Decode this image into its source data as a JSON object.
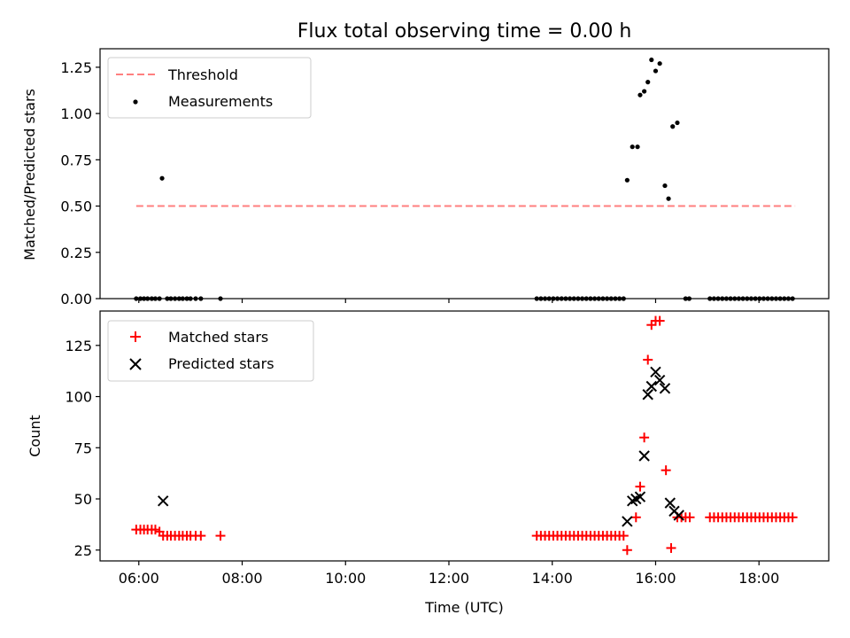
{
  "chart_data": [
    {
      "type": "scatter",
      "title": "Flux total observing time = 0.00 h",
      "xlabel": "",
      "ylabel": "Matched/Predicted stars",
      "xlim": [
        5.25,
        19.35
      ],
      "ylim": [
        0,
        1.35
      ],
      "yticks": [
        0,
        0.25,
        0.5,
        0.75,
        1.0,
        1.25
      ],
      "ytick_labels": [
        "0.00",
        "0.25",
        "0.50",
        "0.75",
        "1.00",
        "1.25"
      ],
      "grid": false,
      "legend_position": "top-left",
      "threshold": {
        "name": "Threshold",
        "value": 0.5,
        "x_range": [
          5.95,
          18.7
        ],
        "color": "#ff7f7f",
        "style": "dashed"
      },
      "series": [
        {
          "name": "Measurements",
          "marker": "dot",
          "color": "#000000",
          "points": [
            [
              5.95,
              0
            ],
            [
              6.03,
              0
            ],
            [
              6.1,
              0
            ],
            [
              6.17,
              0
            ],
            [
              6.25,
              0
            ],
            [
              6.32,
              0
            ],
            [
              6.4,
              0
            ],
            [
              6.45,
              0.65
            ],
            [
              6.55,
              0
            ],
            [
              6.62,
              0
            ],
            [
              6.7,
              0
            ],
            [
              6.78,
              0
            ],
            [
              6.85,
              0
            ],
            [
              6.93,
              0
            ],
            [
              7.0,
              0
            ],
            [
              7.1,
              0
            ],
            [
              7.2,
              0
            ],
            [
              7.58,
              0
            ],
            [
              13.7,
              0
            ],
            [
              13.78,
              0
            ],
            [
              13.86,
              0
            ],
            [
              13.94,
              0
            ],
            [
              14.02,
              0
            ],
            [
              14.1,
              0
            ],
            [
              14.18,
              0
            ],
            [
              14.26,
              0
            ],
            [
              14.34,
              0
            ],
            [
              14.42,
              0
            ],
            [
              14.5,
              0
            ],
            [
              14.58,
              0
            ],
            [
              14.66,
              0
            ],
            [
              14.74,
              0
            ],
            [
              14.82,
              0
            ],
            [
              14.9,
              0
            ],
            [
              14.98,
              0
            ],
            [
              15.06,
              0
            ],
            [
              15.14,
              0
            ],
            [
              15.22,
              0
            ],
            [
              15.3,
              0
            ],
            [
              15.38,
              0
            ],
            [
              15.45,
              0.64
            ],
            [
              15.55,
              0.82
            ],
            [
              15.65,
              0.82
            ],
            [
              15.7,
              1.1
            ],
            [
              15.78,
              1.12
            ],
            [
              15.85,
              1.17
            ],
            [
              15.92,
              1.29
            ],
            [
              16.0,
              1.23
            ],
            [
              16.08,
              1.27
            ],
            [
              16.18,
              0.61
            ],
            [
              16.25,
              0.54
            ],
            [
              16.33,
              0.93
            ],
            [
              16.42,
              0.95
            ],
            [
              16.58,
              0
            ],
            [
              16.65,
              0
            ],
            [
              17.05,
              0
            ],
            [
              17.13,
              0
            ],
            [
              17.21,
              0
            ],
            [
              17.29,
              0
            ],
            [
              17.37,
              0
            ],
            [
              17.45,
              0
            ],
            [
              17.53,
              0
            ],
            [
              17.61,
              0
            ],
            [
              17.69,
              0
            ],
            [
              17.77,
              0
            ],
            [
              17.85,
              0
            ],
            [
              17.93,
              0
            ],
            [
              18.01,
              0
            ],
            [
              18.09,
              0
            ],
            [
              18.17,
              0
            ],
            [
              18.25,
              0
            ],
            [
              18.33,
              0
            ],
            [
              18.41,
              0
            ],
            [
              18.49,
              0
            ],
            [
              18.57,
              0
            ],
            [
              18.65,
              0
            ]
          ]
        }
      ]
    },
    {
      "type": "scatter",
      "title": "",
      "xlabel": "Time (UTC)",
      "ylabel": "Count",
      "xlim": [
        5.25,
        19.35
      ],
      "ylim": [
        19.7,
        141.8
      ],
      "xticks": [
        6,
        8,
        10,
        12,
        14,
        16,
        18
      ],
      "xtick_labels": [
        "06:00",
        "08:00",
        "10:00",
        "12:00",
        "14:00",
        "16:00",
        "18:00"
      ],
      "yticks": [
        25,
        50,
        75,
        100,
        125
      ],
      "ytick_labels": [
        "25",
        "50",
        "75",
        "100",
        "125"
      ],
      "grid": false,
      "legend_position": "top-left",
      "series": [
        {
          "name": "Matched stars",
          "marker": "plus",
          "color": "#ff0000",
          "points": [
            [
              5.95,
              35
            ],
            [
              6.03,
              35
            ],
            [
              6.1,
              35
            ],
            [
              6.17,
              35
            ],
            [
              6.25,
              35
            ],
            [
              6.32,
              35
            ],
            [
              6.4,
              34
            ],
            [
              6.47,
              32
            ],
            [
              6.55,
              32
            ],
            [
              6.62,
              32
            ],
            [
              6.7,
              32
            ],
            [
              6.78,
              32
            ],
            [
              6.85,
              32
            ],
            [
              6.93,
              32
            ],
            [
              7.0,
              32
            ],
            [
              7.1,
              32
            ],
            [
              7.2,
              32
            ],
            [
              7.58,
              32
            ],
            [
              13.7,
              32
            ],
            [
              13.78,
              32
            ],
            [
              13.86,
              32
            ],
            [
              13.94,
              32
            ],
            [
              14.02,
              32
            ],
            [
              14.1,
              32
            ],
            [
              14.18,
              32
            ],
            [
              14.26,
              32
            ],
            [
              14.34,
              32
            ],
            [
              14.42,
              32
            ],
            [
              14.5,
              32
            ],
            [
              14.58,
              32
            ],
            [
              14.66,
              32
            ],
            [
              14.74,
              32
            ],
            [
              14.82,
              32
            ],
            [
              14.9,
              32
            ],
            [
              14.98,
              32
            ],
            [
              15.06,
              32
            ],
            [
              15.14,
              32
            ],
            [
              15.22,
              32
            ],
            [
              15.3,
              32
            ],
            [
              15.38,
              32
            ],
            [
              15.45,
              25
            ],
            [
              15.62,
              41
            ],
            [
              15.7,
              56
            ],
            [
              15.78,
              80
            ],
            [
              15.85,
              118
            ],
            [
              15.92,
              135
            ],
            [
              16.0,
              137
            ],
            [
              16.08,
              137
            ],
            [
              16.2,
              64
            ],
            [
              16.3,
              26
            ],
            [
              16.42,
              41
            ],
            [
              16.5,
              41
            ],
            [
              16.58,
              41
            ],
            [
              16.66,
              41
            ],
            [
              17.05,
              41
            ],
            [
              17.13,
              41
            ],
            [
              17.21,
              41
            ],
            [
              17.29,
              41
            ],
            [
              17.37,
              41
            ],
            [
              17.45,
              41
            ],
            [
              17.53,
              41
            ],
            [
              17.61,
              41
            ],
            [
              17.69,
              41
            ],
            [
              17.77,
              41
            ],
            [
              17.85,
              41
            ],
            [
              17.93,
              41
            ],
            [
              18.01,
              41
            ],
            [
              18.09,
              41
            ],
            [
              18.17,
              41
            ],
            [
              18.25,
              41
            ],
            [
              18.33,
              41
            ],
            [
              18.41,
              41
            ],
            [
              18.49,
              41
            ],
            [
              18.57,
              41
            ],
            [
              18.65,
              41
            ]
          ]
        },
        {
          "name": "Predicted stars",
          "marker": "x",
          "color": "#000000",
          "points": [
            [
              6.47,
              49
            ],
            [
              15.45,
              39
            ],
            [
              15.55,
              49
            ],
            [
              15.62,
              50
            ],
            [
              15.7,
              51
            ],
            [
              15.78,
              71
            ],
            [
              15.85,
              101
            ],
            [
              15.92,
              105
            ],
            [
              16.0,
              112
            ],
            [
              16.08,
              108
            ],
            [
              16.18,
              104
            ],
            [
              16.28,
              48
            ],
            [
              16.36,
              44
            ],
            [
              16.45,
              42
            ]
          ]
        }
      ]
    }
  ]
}
